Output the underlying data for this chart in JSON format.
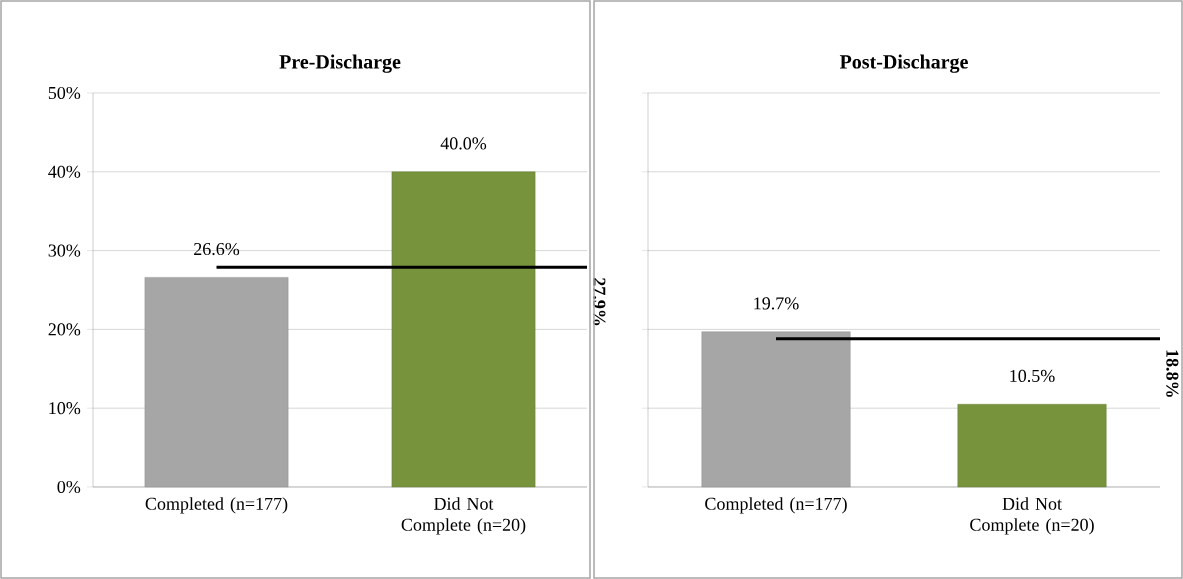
{
  "chart_data": [
    {
      "type": "bar",
      "title": "Pre-Discharge",
      "categories": [
        "Completed (n=177)",
        "Did Not Complete (n=20)"
      ],
      "values": [
        26.6,
        40.0
      ],
      "colors": [
        "#a6a6a6",
        "#77933c"
      ],
      "value_labels": [
        "26.6%",
        "40.0%"
      ],
      "ylim": [
        0,
        50
      ],
      "yticks": [
        {
          "value": 0,
          "label": "0%"
        },
        {
          "value": 10,
          "label": "10%"
        },
        {
          "value": 20,
          "label": "20%"
        },
        {
          "value": 30,
          "label": "30%"
        },
        {
          "value": 40,
          "label": "40%"
        },
        {
          "value": 50,
          "label": "50%"
        }
      ],
      "grid": "y",
      "ref_lines": [
        {
          "axis": "y",
          "value": 27.9,
          "label": "27.9%",
          "color": "#000000"
        }
      ]
    },
    {
      "type": "bar",
      "title": "Post-Discharge",
      "categories": [
        "Completed (n=177)",
        "Did Not Complete (n=20)"
      ],
      "values": [
        19.7,
        10.5
      ],
      "colors": [
        "#a6a6a6",
        "#77933c"
      ],
      "value_labels": [
        "19.7%",
        "10.5%"
      ],
      "ylim": [
        0,
        50
      ],
      "yticks": [
        0,
        10,
        20,
        30,
        40,
        50
      ],
      "grid": "y",
      "tick_labels": "x",
      "ref_lines": [
        {
          "axis": "y",
          "value": 18.8,
          "label": "18.8%",
          "color": "#000000"
        }
      ]
    }
  ]
}
